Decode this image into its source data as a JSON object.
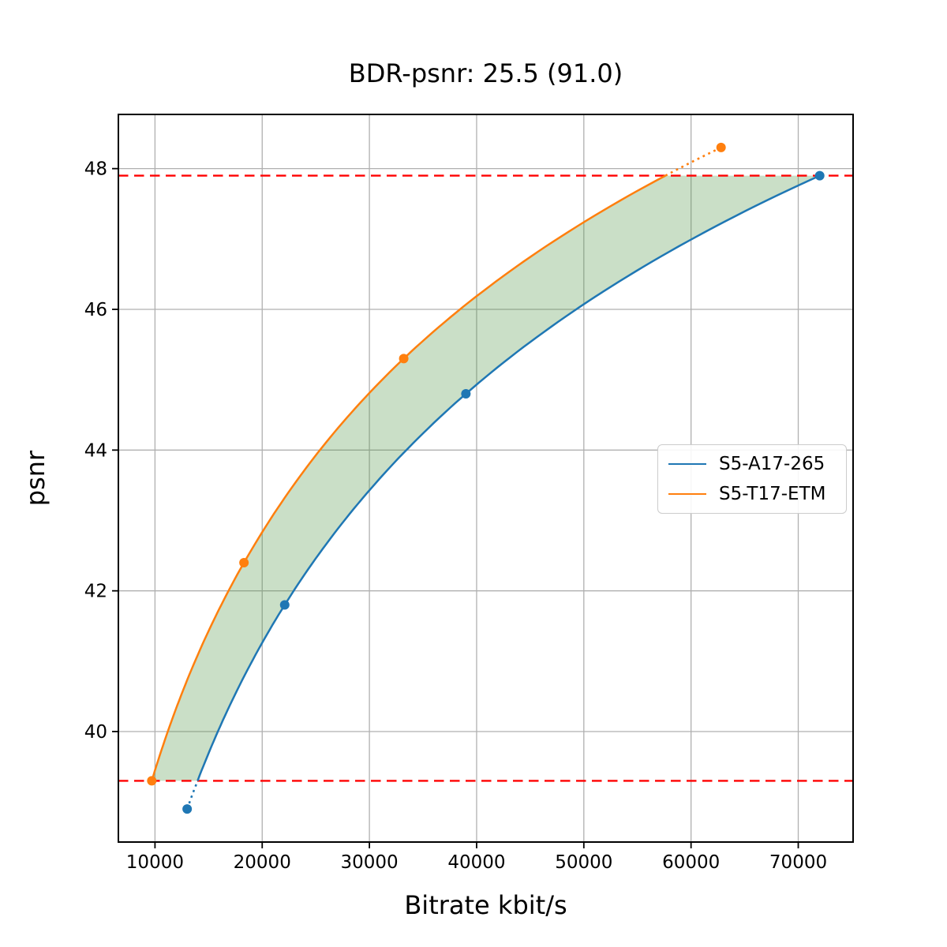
{
  "title": "BDR-psnr: 25.5 (91.0)",
  "chart_data": {
    "type": "line",
    "title": "BDR-psnr: 25.5 (91.0)",
    "xlabel": "Bitrate kbit/s",
    "ylabel": "psnr",
    "xlim": [
      6585,
      75115
    ],
    "ylim": [
      38.43,
      48.77
    ],
    "x_ticks": [
      10000,
      20000,
      30000,
      40000,
      50000,
      60000,
      70000
    ],
    "y_ticks": [
      40,
      42,
      44,
      46,
      48
    ],
    "grid": true,
    "legend_position": "center right",
    "series": [
      {
        "name": "S5-A17-265",
        "color": "#1f77b4",
        "marker": "circle",
        "points": [
          [
            13000,
            38.9
          ],
          [
            22100,
            41.8
          ],
          [
            39000,
            44.8
          ],
          [
            72000,
            47.9
          ]
        ]
      },
      {
        "name": "S5-T17-ETM",
        "color": "#ff7f0e",
        "marker": "circle",
        "points": [
          [
            9700,
            39.3
          ],
          [
            18300,
            42.4
          ],
          [
            33200,
            45.3
          ],
          [
            62800,
            48.3
          ]
        ]
      }
    ],
    "hlines": [
      {
        "y": 47.9,
        "color": "#ff0000",
        "style": "dashed"
      },
      {
        "y": 39.3,
        "color": "#ff0000",
        "style": "dashed"
      }
    ],
    "shaded_region": {
      "psnr_range": [
        39.3,
        47.9
      ],
      "color": "rgba(80,150,70,0.3)",
      "between": [
        "S5-T17-ETM",
        "S5-A17-265"
      ]
    },
    "interpolation": "pchip-log10-bitrate-vs-psnr"
  },
  "style_colors": {
    "grid": "#b0b0b0",
    "spine": "#000000",
    "legend_border": "#cccccc",
    "background": "#ffffff"
  }
}
